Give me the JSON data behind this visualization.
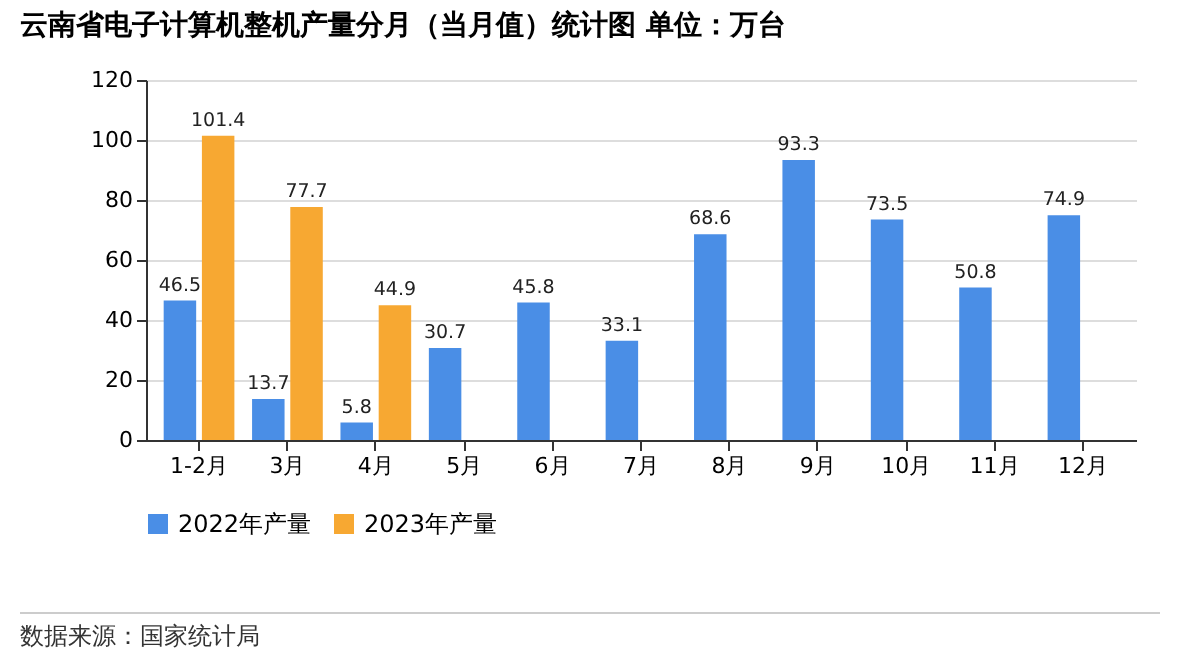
{
  "chart_data": {
    "type": "bar",
    "title": "云南省电子计算机整机产量分月（当月值）统计图 单位：万台",
    "categories": [
      "1-2月",
      "3月",
      "4月",
      "5月",
      "6月",
      "7月",
      "8月",
      "9月",
      "10月",
      "11月",
      "12月"
    ],
    "series": [
      {
        "name": "2022年产量",
        "color": "#4a8ee6",
        "values": [
          46.5,
          13.7,
          5.8,
          30.7,
          45.8,
          33.1,
          68.6,
          93.3,
          73.5,
          50.8,
          74.9
        ]
      },
      {
        "name": "2023年产量",
        "color": "#f7a832",
        "values": [
          101.4,
          77.7,
          44.9,
          null,
          null,
          null,
          null,
          null,
          null,
          null,
          null
        ]
      }
    ],
    "ylim": [
      0,
      120
    ],
    "yticks": [
      0,
      20,
      40,
      60,
      80,
      100,
      120
    ],
    "grid": "y",
    "legend": "bottom",
    "data_labels": true,
    "annotations": [
      "数据来源：国家统计局"
    ]
  }
}
